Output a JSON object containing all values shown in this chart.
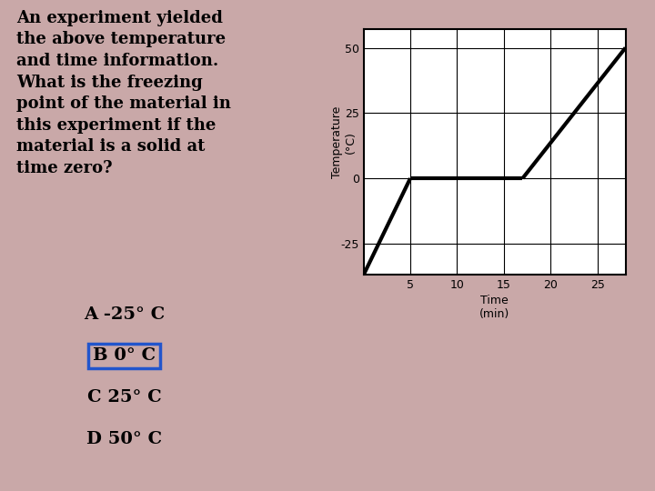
{
  "background_color": "#c9a8a8",
  "question_text": "An experiment yielded\nthe above temperature\nand time information.\nWhat is the freezing\npoint of the material in\nthis experiment if the\nmaterial is a solid at\ntime zero?",
  "question_fontsize": 13,
  "choices": [
    {
      "label": "A",
      "text": "-25° C",
      "boxed": false
    },
    {
      "label": "B",
      "text": "0° C",
      "boxed": true
    },
    {
      "label": "C",
      "text": "25° C",
      "boxed": false
    },
    {
      "label": "D",
      "text": "50° C",
      "boxed": false
    }
  ],
  "choices_fontsize": 14,
  "graph": {
    "xlim": [
      0,
      28
    ],
    "ylim": [
      -37,
      57
    ],
    "xticks": [
      5,
      10,
      15,
      20,
      25
    ],
    "yticks": [
      -25,
      0,
      25,
      50
    ],
    "xlabel": "Time\n(min)",
    "ylabel": "Temperature\n(°C)",
    "line_segments": [
      {
        "x": [
          0,
          5
        ],
        "y": [
          -37,
          0
        ]
      },
      {
        "x": [
          5,
          17
        ],
        "y": [
          0,
          0
        ]
      },
      {
        "x": [
          17,
          28
        ],
        "y": [
          0,
          50
        ]
      }
    ],
    "line_color": "#000000",
    "line_width": 3,
    "bg_color": "#ffffff"
  }
}
